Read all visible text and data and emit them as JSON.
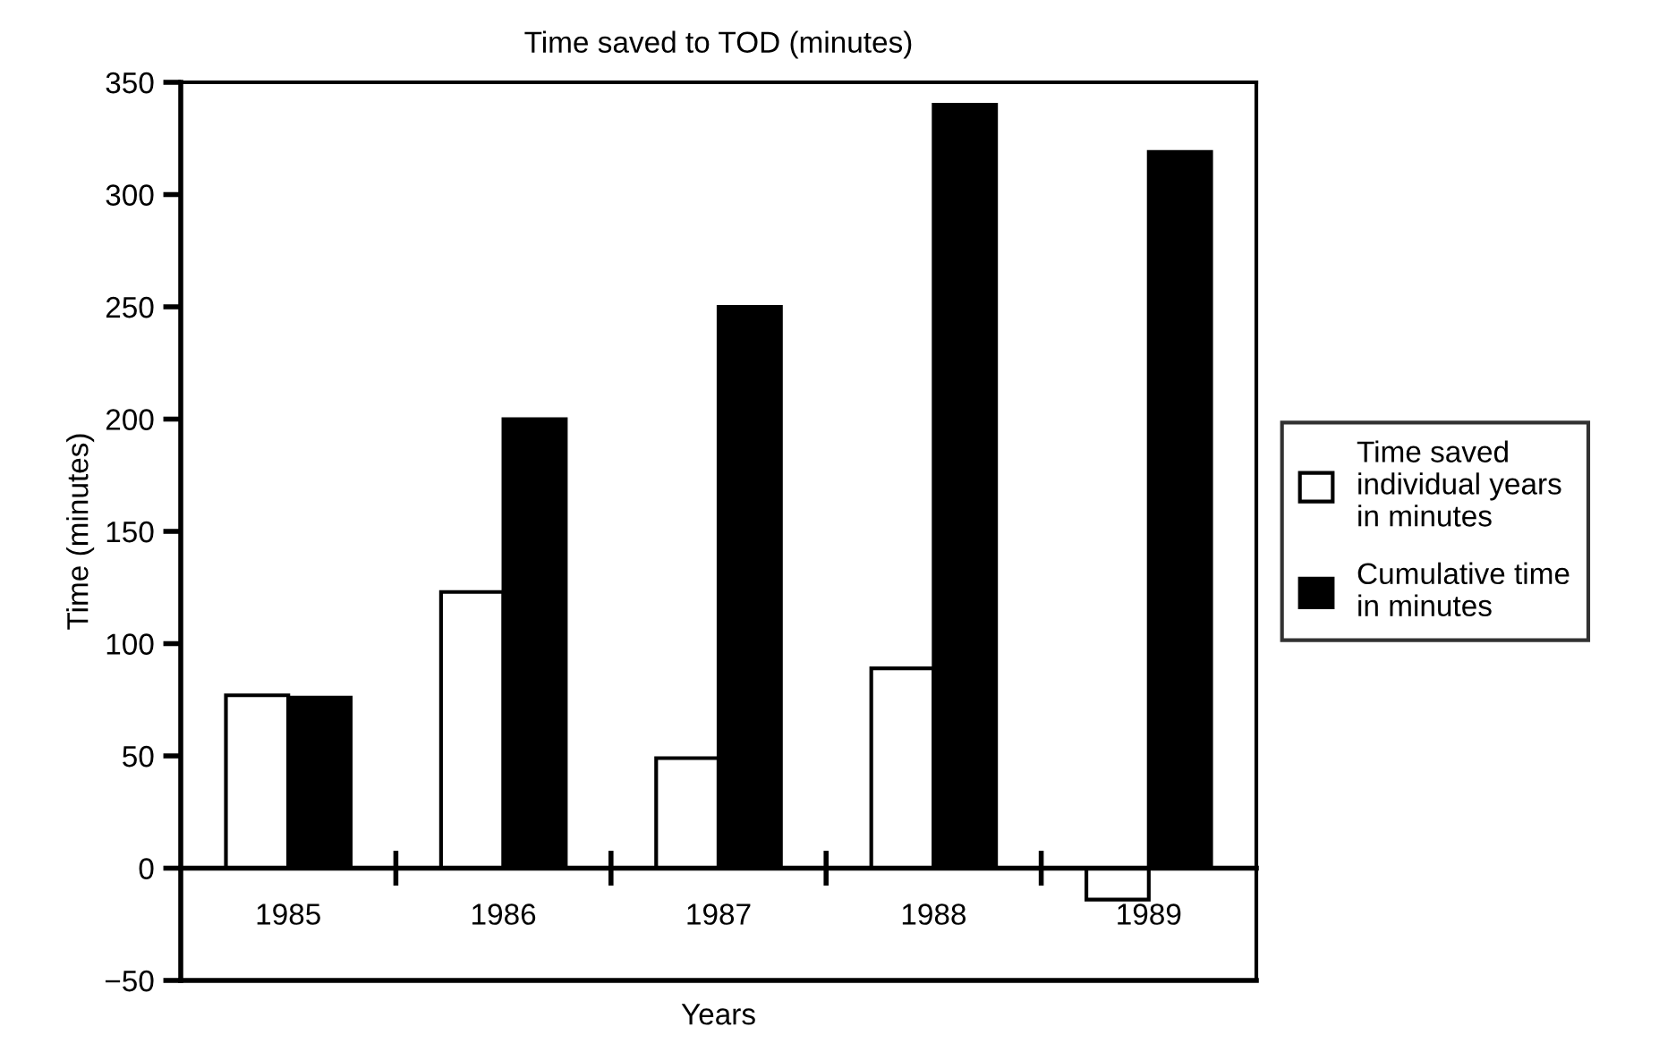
{
  "chart_data": {
    "type": "bar",
    "title": "Time saved to TOD (minutes)",
    "xlabel": "Years",
    "ylabel": "Time (minutes)",
    "categories": [
      "1985",
      "1986",
      "1987",
      "1988",
      "1989"
    ],
    "series": [
      {
        "name": "Time saved\nindividual years\nin minutes",
        "color": "#ffffff",
        "values": [
          77,
          123,
          49,
          89,
          -14
        ]
      },
      {
        "name": "Cumulative time\nin minutes",
        "color": "#000000",
        "values": [
          76,
          200,
          250,
          340,
          319
        ]
      }
    ],
    "ylim": [
      -50,
      350
    ],
    "yticks": [
      {
        "value": -50,
        "label": "−50"
      },
      0,
      50,
      100,
      150,
      200,
      250,
      300,
      350
    ],
    "legend": "right",
    "grid": false
  }
}
